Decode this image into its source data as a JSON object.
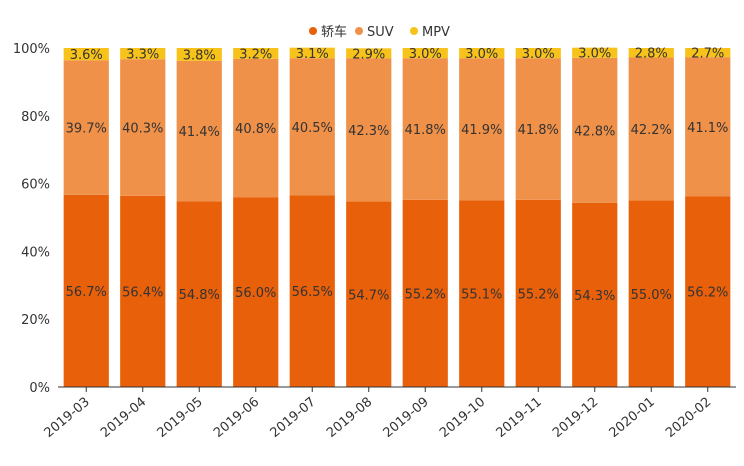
{
  "chart_data": {
    "type": "bar",
    "stacked": true,
    "percent": true,
    "categories": [
      "2019-03",
      "2019-04",
      "2019-05",
      "2019-06",
      "2019-07",
      "2019-08",
      "2019-09",
      "2019-10",
      "2019-11",
      "2019-12",
      "2020-01",
      "2020-02"
    ],
    "series": [
      {
        "name": "轿车",
        "color": "#e8600a",
        "values": [
          56.7,
          56.4,
          54.8,
          56.0,
          56.5,
          54.7,
          55.2,
          55.1,
          55.2,
          54.3,
          55.0,
          56.2
        ],
        "labels": [
          "56.7%",
          "56.4%",
          "54.8%",
          "56.0%",
          "56.5%",
          "54.7%",
          "55.2%",
          "55.1%",
          "55.2%",
          "54.3%",
          "55.0%",
          "56.2%"
        ]
      },
      {
        "name": "SUV",
        "color": "#f0914a",
        "values": [
          39.7,
          40.3,
          41.4,
          40.8,
          40.5,
          42.3,
          41.8,
          41.9,
          41.8,
          42.8,
          42.2,
          41.1
        ],
        "labels": [
          "39.7%",
          "40.3%",
          "41.4%",
          "40.8%",
          "40.5%",
          "42.3%",
          "41.8%",
          "41.9%",
          "41.8%",
          "42.8%",
          "42.2%",
          "41.1%"
        ]
      },
      {
        "name": "MPV",
        "color": "#f7c21a",
        "values": [
          3.6,
          3.3,
          3.8,
          3.2,
          3.1,
          2.9,
          3.0,
          3.0,
          3.0,
          3.0,
          2.8,
          2.7
        ],
        "labels": [
          "3.6%",
          "3.3%",
          "3.8%",
          "3.2%",
          "3.1%",
          "2.9%",
          "3.0%",
          "3.0%",
          "3.0%",
          "3.0%",
          "2.8%",
          "2.7%"
        ]
      }
    ],
    "ylim": [
      0,
      100
    ],
    "yticks": [
      "0%",
      "20%",
      "40%",
      "60%",
      "80%",
      "100%"
    ],
    "grid": false,
    "legend_position": "top-center"
  }
}
